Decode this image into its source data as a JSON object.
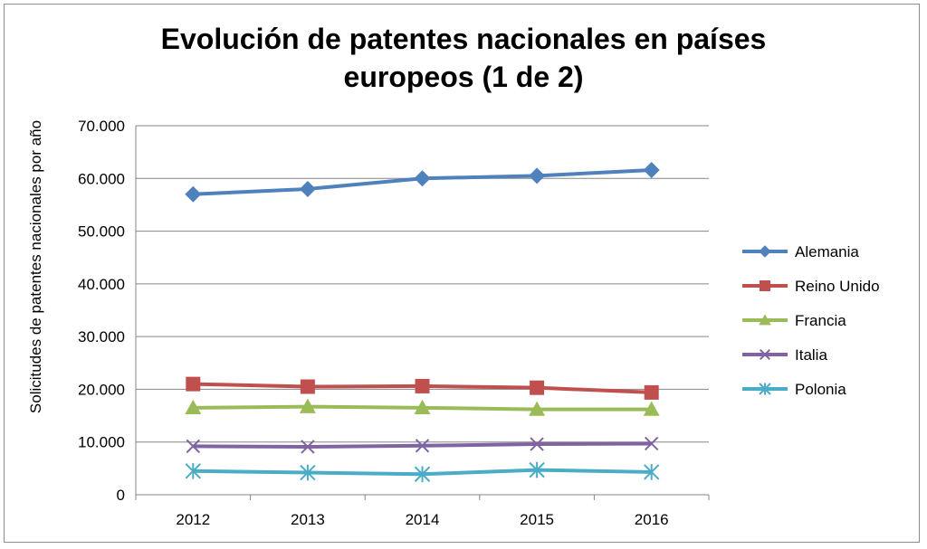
{
  "chart_data": {
    "type": "line",
    "title": [
      "Evolución de patentes nacionales en países",
      "europeos (1 de 2)"
    ],
    "xlabel": "",
    "ylabel": "Solicitudes de patentes nacionales por año",
    "categories": [
      "2012",
      "2013",
      "2014",
      "2015",
      "2016"
    ],
    "ylim": [
      0,
      70000
    ],
    "yticks": [
      0,
      10000,
      20000,
      30000,
      40000,
      50000,
      60000,
      70000
    ],
    "ytick_labels": [
      "0",
      "10.000",
      "20.000",
      "30.000",
      "40.000",
      "50.000",
      "60.000",
      "70.000"
    ],
    "grid": true,
    "legend_position": "right",
    "series": [
      {
        "name": "Alemania",
        "color": "#4f81bd",
        "marker": "diamond",
        "values": [
          57000,
          58000,
          60000,
          60500,
          61600
        ]
      },
      {
        "name": "Reino Unido",
        "color": "#c0504d",
        "marker": "square",
        "values": [
          21000,
          20500,
          20600,
          20300,
          19400
        ]
      },
      {
        "name": "Francia",
        "color": "#9bbb59",
        "marker": "triangle",
        "values": [
          16500,
          16700,
          16500,
          16200,
          16200
        ]
      },
      {
        "name": "Italia",
        "color": "#8064a2",
        "marker": "x",
        "values": [
          9200,
          9100,
          9300,
          9600,
          9700
        ]
      },
      {
        "name": "Polonia",
        "color": "#4bacc6",
        "marker": "star",
        "values": [
          4500,
          4200,
          3900,
          4700,
          4300
        ]
      }
    ]
  }
}
